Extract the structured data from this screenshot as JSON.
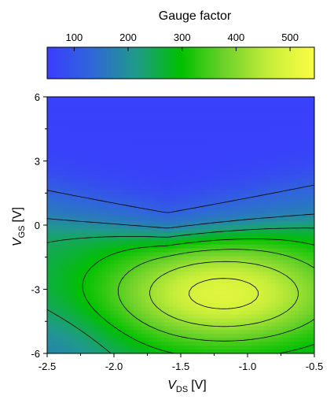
{
  "chart_data": {
    "type": "heatmap",
    "colorbar": {
      "title": "Gauge factor",
      "range": [
        50,
        545
      ],
      "ticks": [
        "100",
        "200",
        "300",
        "400",
        "500"
      ],
      "tick_values": [
        100,
        200,
        300,
        400,
        500
      ],
      "colors": [
        "#3a3cff",
        "#2f68d8",
        "#1f9a8a",
        "#00c000",
        "#6fd22a",
        "#c8ee3a",
        "#fbfd42"
      ]
    },
    "xlabel": {
      "main": "V",
      "sub": "DS",
      "unit": "[V]"
    },
    "ylabel": {
      "main": "V",
      "sub": "GS",
      "unit": "[V]"
    },
    "xlim": [
      -2.5,
      -0.5
    ],
    "ylim": [
      -6,
      6
    ],
    "x_ticks": [
      "-2.5",
      "-2.0",
      "-1.5",
      "-1.0",
      "-0.5"
    ],
    "x_tick_values": [
      -2.5,
      -2.0,
      -1.5,
      -1.0,
      -0.5
    ],
    "y_ticks": [
      "6",
      "3",
      "0",
      "-3",
      "-6"
    ],
    "y_tick_values": [
      6,
      3,
      0,
      -3,
      -6
    ],
    "contour_levels": [
      120,
      180,
      240,
      300,
      360,
      420,
      480
    ],
    "z_model": {
      "description_shown": false,
      "low_value": 60,
      "peak_value": 535
    }
  }
}
